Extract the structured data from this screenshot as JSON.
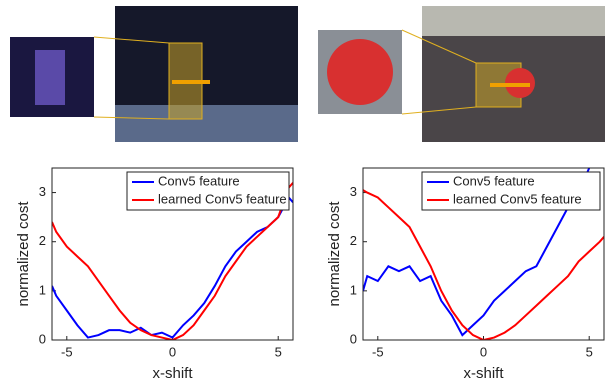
{
  "chart_data": [
    {
      "type": "line",
      "xlabel": "x-shift",
      "ylabel": "normalized cost",
      "x": [
        -5.7,
        -5.5,
        -5,
        -4.5,
        -4,
        -3.5,
        -3,
        -2.5,
        -2,
        -1.5,
        -1,
        -0.5,
        0,
        0.5,
        1,
        1.5,
        2,
        2.5,
        3,
        3.5,
        4,
        4.5,
        5,
        5.5,
        5.7
      ],
      "series": [
        {
          "name": "Conv5 feature",
          "color": "#0000ff",
          "values": [
            1.1,
            0.9,
            0.6,
            0.3,
            0.05,
            0.1,
            0.2,
            0.2,
            0.15,
            0.25,
            0.1,
            0.15,
            0.05,
            0.3,
            0.5,
            0.75,
            1.1,
            1.5,
            1.8,
            2.0,
            2.2,
            2.3,
            2.5,
            2.9,
            2.8
          ]
        },
        {
          "name": "learned Conv5 feature",
          "color": "#ff0000",
          "values": [
            2.4,
            2.2,
            1.9,
            1.7,
            1.5,
            1.2,
            0.9,
            0.6,
            0.35,
            0.2,
            0.1,
            0.05,
            0,
            0.1,
            0.3,
            0.6,
            0.9,
            1.3,
            1.6,
            1.9,
            2.1,
            2.3,
            2.5,
            3.1,
            3.2
          ]
        }
      ],
      "xlim": [
        -5.7,
        5.7
      ],
      "ylim": [
        0,
        3.5
      ],
      "xticks": [
        -5,
        0,
        5
      ],
      "yticks": [
        0,
        1,
        2,
        3
      ],
      "legend": "upper-right"
    },
    {
      "type": "line",
      "xlabel": "x-shift",
      "ylabel": "normalized cost",
      "x": [
        -5.7,
        -5.5,
        -5,
        -4.5,
        -4,
        -3.5,
        -3,
        -2.5,
        -2,
        -1.5,
        -1,
        -0.5,
        0,
        0.5,
        1,
        1.5,
        2,
        2.5,
        3,
        3.5,
        4,
        4.5,
        5,
        5.5,
        5.7
      ],
      "series": [
        {
          "name": "Conv5 feature",
          "color": "#0000ff",
          "values": [
            1.0,
            1.3,
            1.2,
            1.5,
            1.4,
            1.5,
            1.2,
            1.3,
            0.8,
            0.5,
            0.1,
            0.3,
            0.5,
            0.8,
            1.0,
            1.2,
            1.4,
            1.5,
            1.9,
            2.3,
            2.7,
            3.0,
            3.5,
            null,
            null
          ]
        },
        {
          "name": "learned Conv5 feature",
          "color": "#ff0000",
          "values": [
            3.05,
            3.0,
            2.9,
            2.7,
            2.5,
            2.3,
            1.9,
            1.5,
            1.0,
            0.6,
            0.3,
            0.1,
            0,
            0.05,
            0.15,
            0.3,
            0.5,
            0.7,
            0.9,
            1.1,
            1.3,
            1.6,
            1.8,
            2.0,
            2.1
          ]
        }
      ],
      "xlim": [
        -5.7,
        5.7
      ],
      "ylim": [
        0,
        3.5
      ],
      "xticks": [
        -5,
        0,
        5
      ],
      "yticks": [
        0,
        1,
        2,
        3
      ],
      "legend": "upper-right"
    }
  ]
}
